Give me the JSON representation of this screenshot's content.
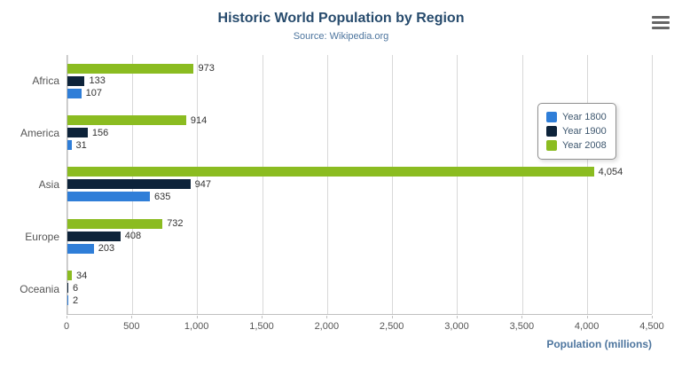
{
  "chart_data": {
    "type": "bar",
    "title": "Historic World Population by Region",
    "subtitle": "Source: Wikipedia.org",
    "categories": [
      "Africa",
      "America",
      "Asia",
      "Europe",
      "Oceania"
    ],
    "series": [
      {
        "name": "Year 1800",
        "color": "#2f7ed8",
        "values": [
          107,
          31,
          635,
          203,
          2
        ]
      },
      {
        "name": "Year 1900",
        "color": "#0d233a",
        "values": [
          133,
          156,
          947,
          408,
          6
        ]
      },
      {
        "name": "Year 2008",
        "color": "#8bbc21",
        "values": [
          973,
          914,
          4054,
          732,
          34
        ]
      }
    ],
    "xlabel": "Population (millions)",
    "ylabel": "",
    "xlim": [
      0,
      4500
    ],
    "xticks": [
      0,
      500,
      1000,
      1500,
      2000,
      2500,
      3000,
      3500,
      4000,
      4500
    ],
    "xtick_labels": [
      "0",
      "500",
      "1,000",
      "1,500",
      "2,000",
      "2,500",
      "3,000",
      "3,500",
      "4,000",
      "4,500"
    ],
    "grid": true,
    "legend_position": "right",
    "bar_display_order_top_to_bottom": [
      "Year 2008",
      "Year 1900",
      "Year 1800"
    ]
  },
  "export_menu": {
    "icon": "hamburger-icon"
  },
  "colors": {
    "title": "#274b6d",
    "subtitle": "#4d759e",
    "axis_title": "#4d759e",
    "gridline": "#d8d8d8",
    "axis_line": "#c0c0c0",
    "data_label": "#333333",
    "legend_border": "#909090"
  }
}
